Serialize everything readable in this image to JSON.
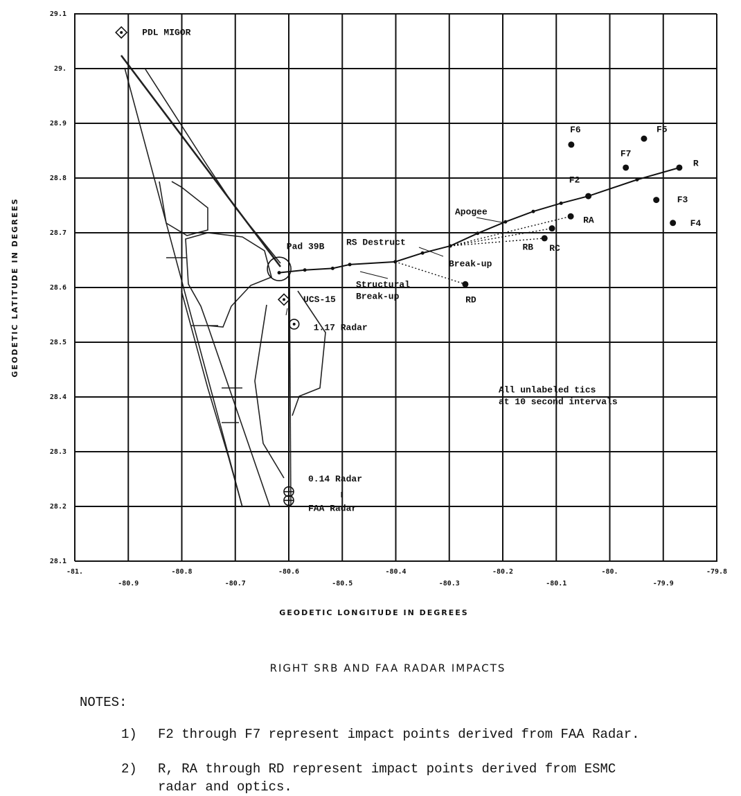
{
  "chart_data": {
    "type": "scatter",
    "title": "RIGHT SRB AND FAA RADAR IMPACTS",
    "xlabel": "GEODETIC LONGITUDE IN DEGREES",
    "ylabel": "GEODETIC LATITUDE IN DEGREES",
    "xlim": [
      -81,
      -79.8
    ],
    "ylim": [
      28.1,
      29.1
    ],
    "xticks": [
      {
        "value": -81,
        "label": "-81."
      },
      -80.9,
      -80.8,
      -80.7,
      -80.6,
      -80.5,
      -80.4,
      -80.3,
      -80.2,
      -80.1,
      {
        "value": -80,
        "label": "-80."
      },
      -79.9,
      -79.8
    ],
    "yticks": [
      28.1,
      28.2,
      28.3,
      28.4,
      28.5,
      28.6,
      28.7,
      28.8,
      28.9,
      {
        "value": 29,
        "label": "29."
      },
      29.1
    ],
    "grid": true,
    "color": "#111111",
    "trajectory": {
      "x": [
        -80.618,
        -80.57,
        -80.518,
        -80.486,
        -80.401,
        -80.35,
        -80.298,
        -80.247,
        -80.195,
        -80.143,
        -80.091,
        -80.04,
        -79.949,
        -79.87
      ],
      "y": [
        28.627,
        28.632,
        28.635,
        28.642,
        28.647,
        28.663,
        28.676,
        28.699,
        28.72,
        28.739,
        28.754,
        28.767,
        28.797,
        28.819
      ]
    },
    "points": [
      {
        "label": "R",
        "lon": -79.87,
        "lat": 28.819
      },
      {
        "label": "RA",
        "lon": -80.073,
        "lat": 28.73
      },
      {
        "label": "RB",
        "lon": -80.122,
        "lat": 28.69
      },
      {
        "label": "RC",
        "lon": -80.108,
        "lat": 28.708
      },
      {
        "label": "RD",
        "lon": -80.27,
        "lat": 28.606
      },
      {
        "label": "F2",
        "lon": -80.04,
        "lat": 28.767
      },
      {
        "label": "F3",
        "lon": -79.913,
        "lat": 28.76
      },
      {
        "label": "F4",
        "lon": -79.882,
        "lat": 28.718
      },
      {
        "label": "F5",
        "lon": -79.936,
        "lat": 28.872
      },
      {
        "label": "F6",
        "lon": -80.072,
        "lat": 28.861
      },
      {
        "label": "F7",
        "lon": -79.97,
        "lat": 28.819
      }
    ],
    "sites": [
      {
        "label": "PDL MIGOR",
        "lon": -80.913,
        "lat": 29.066,
        "marker": "diamond"
      },
      {
        "label": "Pad 39B",
        "lon": -80.618,
        "lat": 28.634,
        "marker": "ring"
      },
      {
        "label": "UCS-15",
        "lon": -80.609,
        "lat": 28.578,
        "marker": "diamond"
      },
      {
        "label": "1.17 Radar",
        "lon": -80.59,
        "lat": 28.533,
        "marker": "dot-circle"
      },
      {
        "label": "0.14 Radar",
        "lon": -80.6,
        "lat": 28.227,
        "marker": "cross-circle"
      },
      {
        "label": "FAA Radar",
        "lon": -80.6,
        "lat": 28.211,
        "marker": "cross-circle"
      }
    ],
    "annotations": [
      {
        "lines": [
          "Apogee"
        ]
      },
      {
        "lines": [
          "RS Destruct"
        ]
      },
      {
        "lines": [
          "Break-up"
        ]
      },
      {
        "lines": [
          "Structural",
          "Break-up"
        ]
      },
      {
        "lines": [
          "All unlabeled tics",
          "at 10 second intervals"
        ]
      }
    ]
  },
  "notes": {
    "heading": "NOTES:",
    "items": [
      {
        "number": "1)",
        "lines": [
          "F2 through F7 represent impact points derived from FAA Radar."
        ]
      },
      {
        "number": "2)",
        "lines": [
          "R, RA through RD represent impact points derived from ESMC",
          "radar and optics."
        ]
      }
    ]
  }
}
